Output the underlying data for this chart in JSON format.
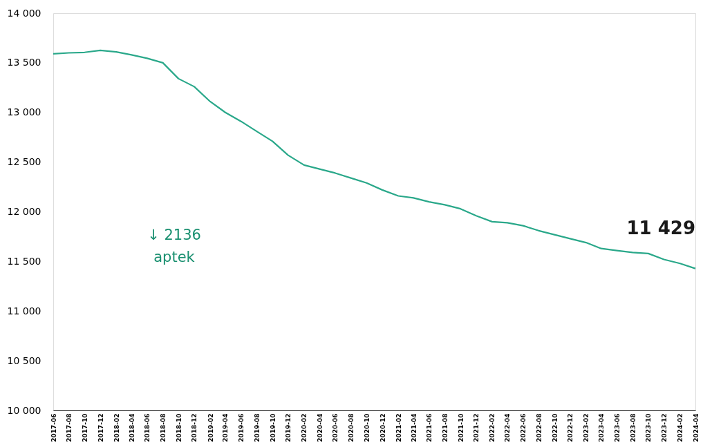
{
  "chart_data": {
    "type": "line",
    "x": [
      "2017-06",
      "2017-08",
      "2017-10",
      "2017-12",
      "2018-02",
      "2018-04",
      "2018-06",
      "2018-08",
      "2018-10",
      "2018-12",
      "2019-02",
      "2019-04",
      "2019-06",
      "2019-08",
      "2019-10",
      "2019-12",
      "2020-02",
      "2020-04",
      "2020-06",
      "2020-08",
      "2020-10",
      "2020-12",
      "2021-02",
      "2021-04",
      "2021-06",
      "2021-08",
      "2021-10",
      "2021-12",
      "2022-02",
      "2022-04",
      "2022-06",
      "2022-08",
      "2022-10",
      "2022-12",
      "2023-02",
      "2023-04",
      "2023-06",
      "2023-08",
      "2023-10",
      "2023-12",
      "2024-02",
      "2024-04"
    ],
    "series": [
      {
        "color": "#2aa88a",
        "values": [
          13590,
          13600,
          13605,
          13625,
          13610,
          13580,
          13545,
          13500,
          13340,
          13260,
          13110,
          13000,
          12910,
          12810,
          12710,
          12570,
          12470,
          12430,
          12390,
          12340,
          12290,
          12220,
          12160,
          12140,
          12100,
          12070,
          12030,
          11960,
          11900,
          11890,
          11860,
          11810,
          11770,
          11730,
          11690,
          11630,
          11610,
          11590,
          11580,
          11520,
          11480,
          11429
        ]
      }
    ],
    "ylim": [
      10000,
      14000
    ],
    "yticks": [
      {
        "value": 10000,
        "label": "10 000"
      },
      {
        "value": 10500,
        "label": "10 500"
      },
      {
        "value": 11000,
        "label": "11 000"
      },
      {
        "value": 11500,
        "label": "11 500"
      },
      {
        "value": 12000,
        "label": "12 000"
      },
      {
        "value": 12500,
        "label": "12 500"
      },
      {
        "value": 13000,
        "label": "13 000"
      },
      {
        "value": 13500,
        "label": "13 500"
      },
      {
        "value": 14000,
        "label": "14 000"
      }
    ],
    "xlim": [
      "2017-06",
      "2024-04"
    ],
    "xticks": [
      "2017-06",
      "2017-08",
      "2017-10",
      "2017-12",
      "2018-02",
      "2018-04",
      "2018-06",
      "2018-08",
      "2018-10",
      "2018-12",
      "2019-02",
      "2019-04",
      "2019-06",
      "2019-08",
      "2019-10",
      "2019-12",
      "2020-02",
      "2020-04",
      "2020-06",
      "2020-08",
      "2020-10",
      "2020-12",
      "2021-02",
      "2021-04",
      "2021-06",
      "2021-08",
      "2021-10",
      "2021-12",
      "2022-02",
      "2022-04",
      "2022-06",
      "2022-08",
      "2022-10",
      "2022-12",
      "2023-02",
      "2023-04",
      "2023-06",
      "2023-08",
      "2023-10",
      "2023-12",
      "2024-02",
      "2024-04"
    ],
    "grid": false,
    "legend": false,
    "marker": "none",
    "line_style": "solid",
    "annotations": [
      {
        "text": "11 429",
        "x": "2024-04",
        "y": 11429
      },
      "↓ 2136\naptek"
    ]
  }
}
